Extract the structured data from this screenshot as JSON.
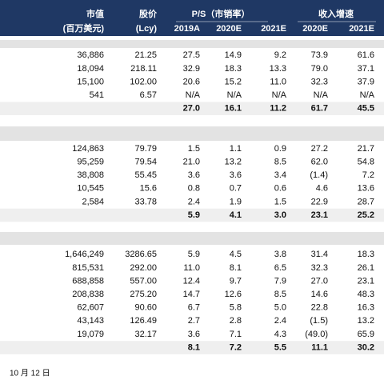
{
  "header": {
    "row1": [
      "市值",
      "股价",
      "P/S（市销率）",
      "收入增速"
    ],
    "row2": [
      "(百万美元)",
      "(Lcy)",
      "2019A",
      "2020E",
      "2021E",
      "2020E",
      "2021E"
    ]
  },
  "sections": [
    {
      "rows": [
        [
          "36,886",
          "21.25",
          "27.5",
          "14.9",
          "9.2",
          "73.9",
          "61.6"
        ],
        [
          "18,094",
          "218.11",
          "32.9",
          "18.3",
          "13.3",
          "79.0",
          "37.1"
        ],
        [
          "15,100",
          "102.00",
          "20.6",
          "15.2",
          "11.0",
          "32.3",
          "37.9"
        ],
        [
          "541",
          "6.57",
          "N/A",
          "N/A",
          "N/A",
          "N/A",
          "N/A"
        ]
      ],
      "average": [
        "27.0",
        "16.1",
        "11.2",
        "61.7",
        "45.5"
      ]
    },
    {
      "rows": [
        [
          "124,863",
          "79.79",
          "1.5",
          "1.1",
          "0.9",
          "27.2",
          "21.7"
        ],
        [
          "95,259",
          "79.54",
          "21.0",
          "13.2",
          "8.5",
          "62.0",
          "54.8"
        ],
        [
          "38,808",
          "55.45",
          "3.6",
          "3.6",
          "3.4",
          "(1.4)",
          "7.2"
        ],
        [
          "10,545",
          "15.6",
          "0.8",
          "0.7",
          "0.6",
          "4.6",
          "13.6"
        ],
        [
          "2,584",
          "33.78",
          "2.4",
          "1.9",
          "1.5",
          "22.9",
          "28.7"
        ]
      ],
      "average": [
        "5.9",
        "4.1",
        "3.0",
        "23.1",
        "25.2"
      ]
    },
    {
      "rows": [
        [
          "1,646,249",
          "3286.65",
          "5.9",
          "4.5",
          "3.8",
          "31.4",
          "18.3"
        ],
        [
          "815,531",
          "292.00",
          "11.0",
          "8.1",
          "6.5",
          "32.3",
          "26.1"
        ],
        [
          "688,858",
          "557.00",
          "12.4",
          "9.7",
          "7.9",
          "27.0",
          "23.1"
        ],
        [
          "208,838",
          "275.20",
          "14.7",
          "12.6",
          "8.5",
          "14.6",
          "48.3"
        ],
        [
          "62,607",
          "90.60",
          "6.7",
          "5.8",
          "5.0",
          "22.8",
          "16.3"
        ],
        [
          "43,143",
          "126.49",
          "2.7",
          "2.8",
          "2.4",
          "(1.5)",
          "13.2"
        ],
        [
          "19,079",
          "32.17",
          "3.6",
          "7.1",
          "4.3",
          "(49.0)",
          "65.9"
        ]
      ],
      "average": [
        "8.1",
        "7.2",
        "5.5",
        "11.1",
        "30.2"
      ]
    }
  ],
  "footer": "10 月 12 日"
}
